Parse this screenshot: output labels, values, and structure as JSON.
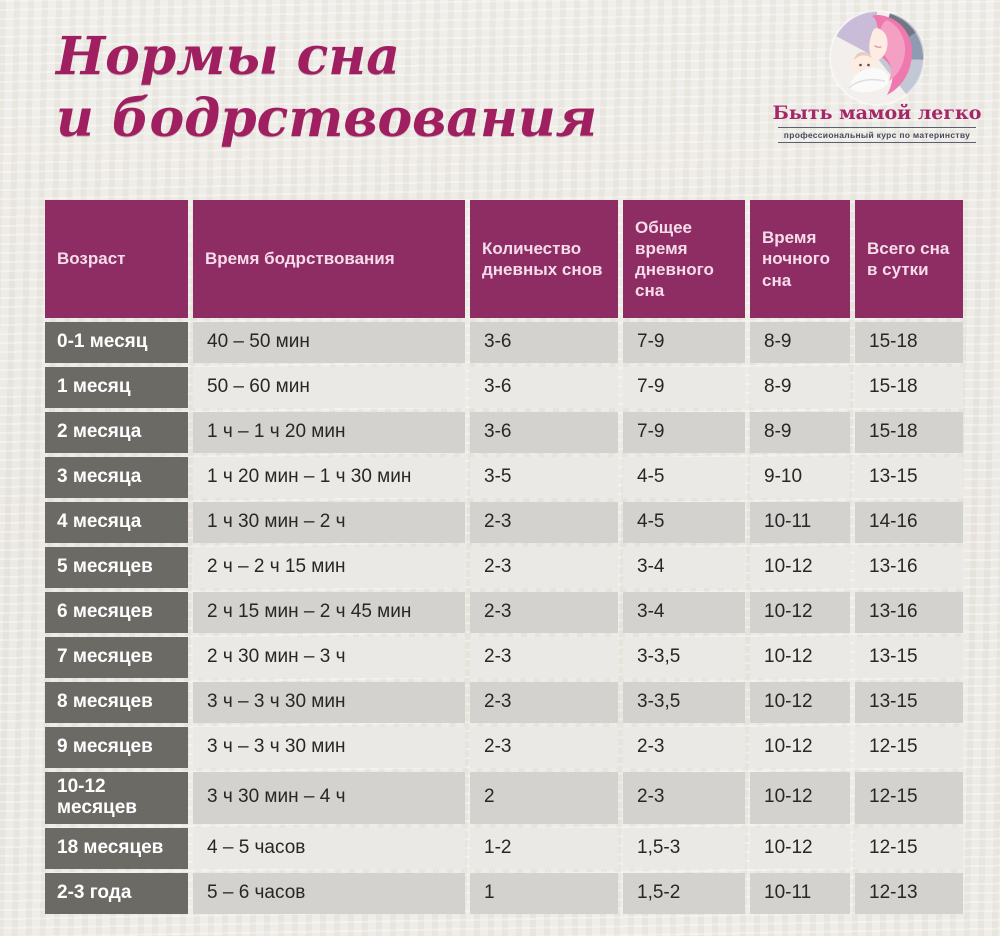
{
  "title": {
    "line1": "Нормы сна",
    "line2": "и бодрствования"
  },
  "logo": {
    "brand": "Быть мамой легко",
    "tagline": "профессиональный курс по материнству",
    "icon": "mother-and-baby-icon"
  },
  "colors": {
    "title_text": "#a01f60",
    "header_bg": "#8d2d63",
    "header_text": "#f6dcea",
    "age_column_bg": "#6b6a64",
    "row_dark": "#d3d2ce",
    "row_light": "#eae9e5",
    "background": "#eae7e1",
    "brand_pink": "#ef79ae"
  },
  "chart_data": {
    "type": "table",
    "title": "Нормы сна и бодрствования",
    "columns": [
      "Возраст",
      "Время бодрствования",
      "Количество дневных снов",
      "Общее время дневного сна",
      "Время ночного сна",
      "Всего сна в сутки"
    ],
    "rows": [
      [
        "0-1 месяц",
        "40 – 50 мин",
        "3-6",
        "7-9",
        "8-9",
        "15-18"
      ],
      [
        "1 месяц",
        "50 – 60 мин",
        "3-6",
        "7-9",
        "8-9",
        "15-18"
      ],
      [
        "2 месяца",
        "1 ч – 1 ч 20 мин",
        "3-6",
        "7-9",
        "8-9",
        "15-18"
      ],
      [
        "3 месяца",
        "1 ч 20 мин – 1 ч 30 мин",
        "3-5",
        "4-5",
        "9-10",
        "13-15"
      ],
      [
        "4 месяца",
        "1 ч 30 мин – 2 ч",
        "2-3",
        "4-5",
        "10-11",
        "14-16"
      ],
      [
        "5 месяцев",
        "2 ч – 2 ч 15 мин",
        "2-3",
        "3-4",
        "10-12",
        "13-16"
      ],
      [
        "6 месяцев",
        "2 ч 15 мин – 2 ч 45 мин",
        "2-3",
        "3-4",
        "10-12",
        "13-16"
      ],
      [
        "7 месяцев",
        "2 ч 30 мин – 3 ч",
        "2-3",
        "3-3,5",
        "10-12",
        "13-15"
      ],
      [
        "8 месяцев",
        "3 ч – 3 ч 30 мин",
        "2-3",
        "3-3,5",
        "10-12",
        "13-15"
      ],
      [
        "9 месяцев",
        "3 ч – 3 ч 30 мин",
        "2-3",
        "2-3",
        "10-12",
        "12-15"
      ],
      [
        "10-12 месяцев",
        "3 ч 30 мин – 4 ч",
        "2",
        "2-3",
        "10-12",
        "12-15"
      ],
      [
        "18 месяцев",
        "4 – 5 часов",
        "1-2",
        "1,5-3",
        "10-12",
        "12-15"
      ],
      [
        "2-3 года",
        "5 – 6 часов",
        "1",
        "1,5-2",
        "10-11",
        "12-13"
      ]
    ]
  }
}
